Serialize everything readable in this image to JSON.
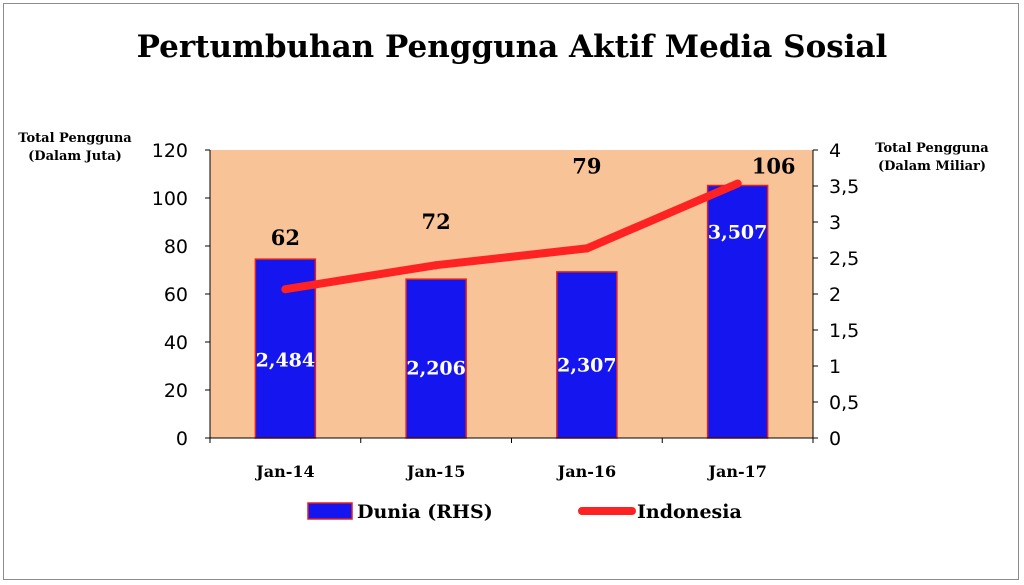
{
  "chart_data": {
    "type": "bar+line",
    "title": "Pertumbuhan Pengguna Aktif Media Sosial",
    "y_left_label": [
      "Total Pengguna",
      "(Dalam Juta)"
    ],
    "y_right_label": [
      "Total Pengguna",
      "(Dalam Miliar)"
    ],
    "y_left_ticks": [
      "0",
      "20",
      "40",
      "60",
      "80",
      "100",
      "120"
    ],
    "y_left_range": [
      0,
      120
    ],
    "y_right_ticks": [
      "0",
      "0,5",
      "1",
      "1,5",
      "2",
      "2,5",
      "3",
      "3,5",
      "4"
    ],
    "y_right_range": [
      0,
      4
    ],
    "categories": [
      "Jan-14",
      "Jan-15",
      "Jan-16",
      "Jan-17"
    ],
    "bar_series": {
      "name": "Dunia (RHS)",
      "axis": "right",
      "values": [
        2.484,
        2.206,
        2.307,
        3.507
      ],
      "labels": [
        "2,484",
        "2,206",
        "2,307",
        "3,507"
      ],
      "color": "#1515f0",
      "edge_color": "#e02020"
    },
    "line_series": {
      "name": "Indonesia",
      "axis": "left",
      "values": [
        62,
        72,
        79,
        106
      ],
      "labels": [
        "62",
        "72",
        "79",
        "106"
      ],
      "color": "#ff2222"
    },
    "plot_background": "#f7c397",
    "grid": false,
    "legend_position": "bottom"
  }
}
